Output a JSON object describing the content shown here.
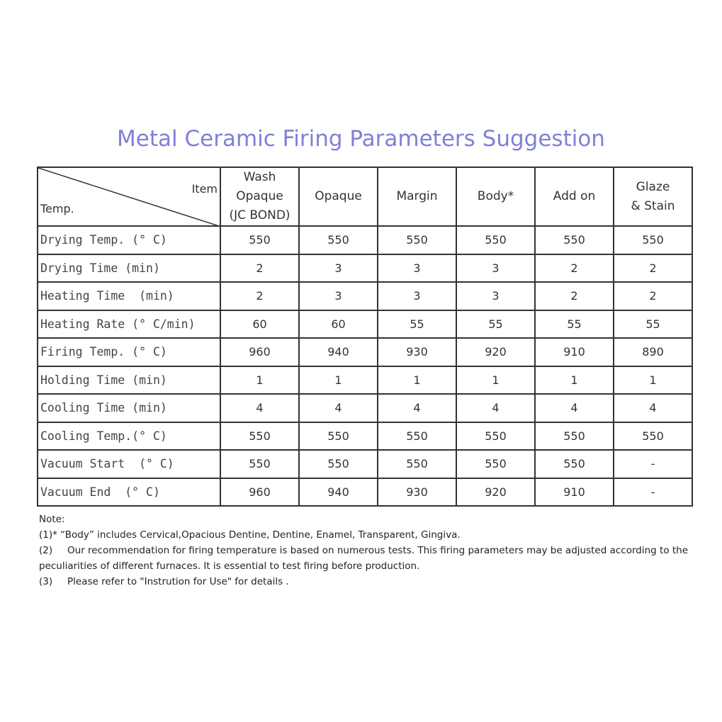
{
  "title": "Metal Ceramic  Firing Parameters Suggestion",
  "table": {
    "corner_item": "Item",
    "corner_temp": "Temp.",
    "columns": [
      [
        "Wash",
        "Opaque",
        "(JC BOND)"
      ],
      [
        "Opaque"
      ],
      [
        "Margin"
      ],
      [
        "Body*"
      ],
      [
        "Add on"
      ],
      [
        "Glaze",
        "& Stain"
      ]
    ],
    "rows": [
      {
        "label": "Drying Temp. (° C)",
        "values": [
          "550",
          "550",
          "550",
          "550",
          "550",
          "550"
        ]
      },
      {
        "label": "Drying Time (min)",
        "values": [
          "2",
          "3",
          "3",
          "3",
          "2",
          "2"
        ]
      },
      {
        "label": "Heating Time  (min)",
        "values": [
          "2",
          "3",
          "3",
          "3",
          "2",
          "2"
        ]
      },
      {
        "label": "Heating Rate (° C/min)",
        "values": [
          "60",
          "60",
          "55",
          "55",
          "55",
          "55"
        ]
      },
      {
        "label": "Firing Temp. (° C)",
        "values": [
          "960",
          "940",
          "930",
          "920",
          "910",
          "890"
        ]
      },
      {
        "label": "Holding Time (min)",
        "values": [
          "1",
          "1",
          "1",
          "1",
          "1",
          "1"
        ]
      },
      {
        "label": "Cooling Time (min)",
        "values": [
          "4",
          "4",
          "4",
          "4",
          "4",
          "4"
        ]
      },
      {
        "label": "Cooling Temp.(° C)",
        "values": [
          "550",
          "550",
          "550",
          "550",
          "550",
          "550"
        ]
      },
      {
        "label": "Vacuum Start  (° C)",
        "values": [
          "550",
          "550",
          "550",
          "550",
          "550",
          "-"
        ]
      },
      {
        "label": "Vacuum End  (° C)",
        "values": [
          "960",
          "940",
          "930",
          "920",
          "910",
          "-"
        ]
      }
    ]
  },
  "notes": {
    "heading": "Note:",
    "n1": "(1)* “Body” includes Cervical,Opacious Dentine, Dentine, Enamel, Transparent, Gingiva.",
    "n2_num": "(2)",
    "n2": "Our recommendation for firing temperature is based on numerous tests. This firing parameters may be adjusted according to the",
    "n2b": "peculiarities of different furnaces. It is essential to test firing before production.",
    "n3_num": "(3)",
    "n3": "Please refer to \"Instrution for Use\" for details ."
  }
}
